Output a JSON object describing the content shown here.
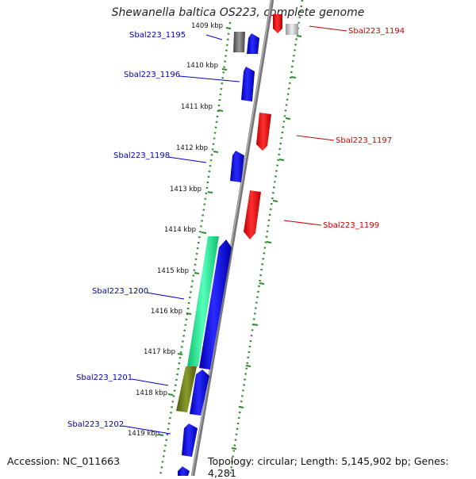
{
  "title": "Shewanella baltica OS223, complete genome",
  "accession_text": "Accession: NC_011663",
  "topology_text": "Topology: circular; Length: 5,145,902 bp; Genes: 4,281",
  "colors": {
    "backbone": "#8a8a8a",
    "forward_gene": "#ee0000",
    "reverse_gene": "#0000dd",
    "rna_gene": "#22ee99",
    "pseudo_gene": "#6b7a1a",
    "tick": "#2d8a2d",
    "forward_label": "#cc0000",
    "reverse_label": "#0000aa"
  },
  "scale_labels": [
    "1409 kbp",
    "1410 kbp",
    "1411 kbp",
    "1412 kbp",
    "1413 kbp",
    "1414 kbp",
    "1415 kbp",
    "1416 kbp",
    "1417 kbp",
    "1418 kbp",
    "1419 kbp"
  ],
  "gene_labels_forward": [
    "Sbal223_1194",
    "Sbal223_1197",
    "Sbal223_1199"
  ],
  "gene_labels_reverse": [
    "Sbal223_1195",
    "Sbal223_1196",
    "Sbal223_1198",
    "Sbal223_1200",
    "Sbal223_1201",
    "Sbal223_1202"
  ]
}
